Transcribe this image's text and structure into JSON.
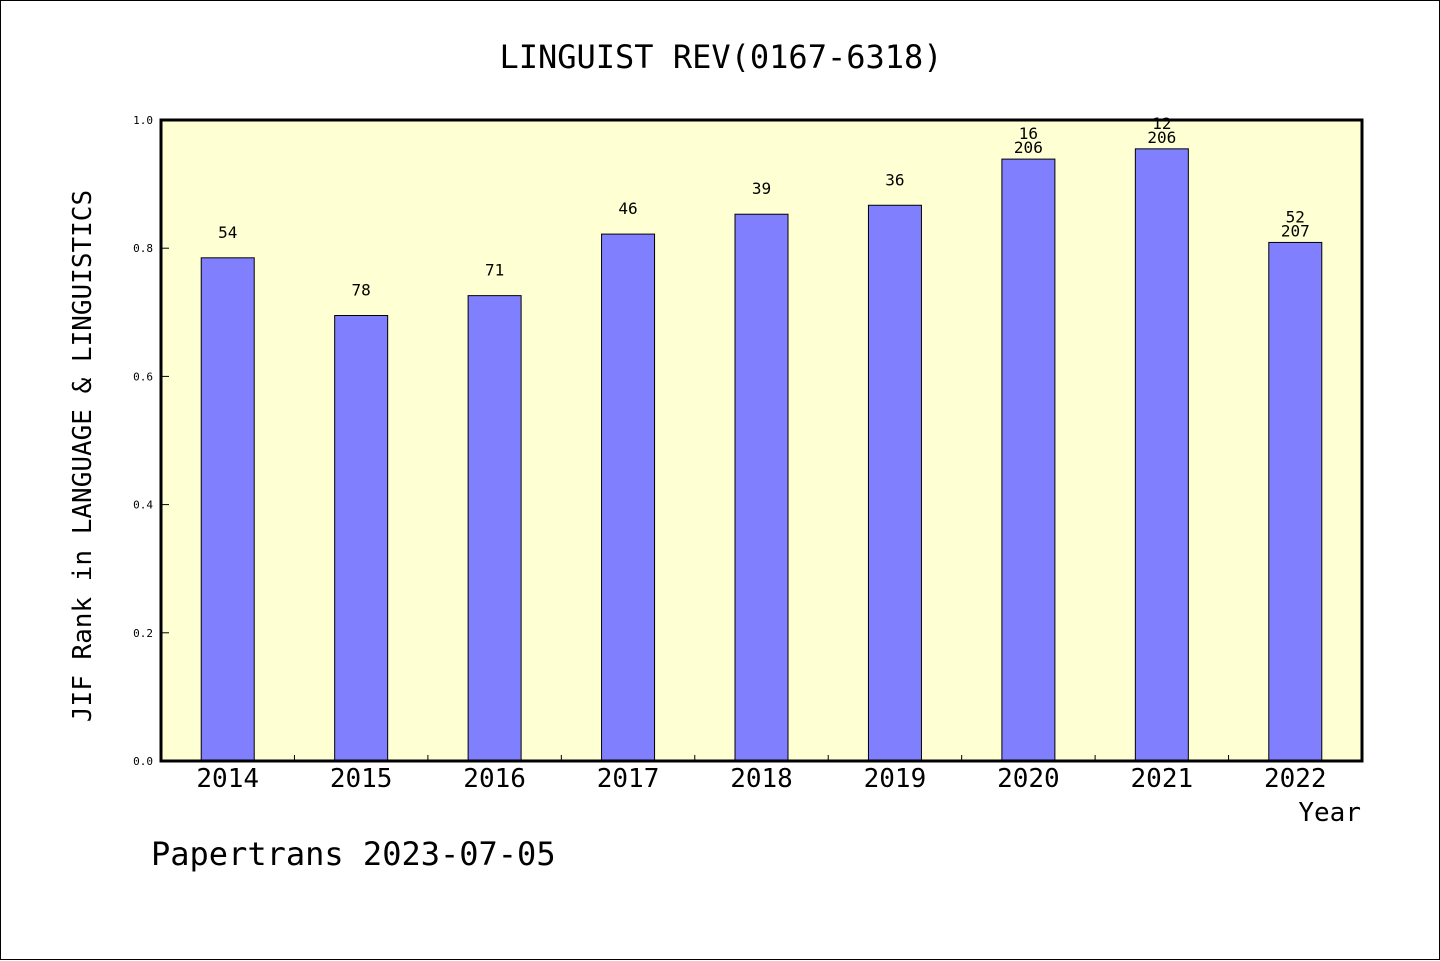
{
  "chart_data": {
    "type": "bar",
    "title": "LINGUIST REV(0167-6318)",
    "xlabel": "Year",
    "ylabel": "JIF Rank in LANGUAGE & LINGUISTICS",
    "ylim": [
      0,
      1.0
    ],
    "yticks": [
      "0.0",
      "0.2",
      "0.4",
      "0.6",
      "0.8",
      "1.0"
    ],
    "grid": false,
    "categories": [
      "2014",
      "2015",
      "2016",
      "2017",
      "2018",
      "2019",
      "2020",
      "2021",
      "2022"
    ],
    "values": [
      0.785,
      0.695,
      0.726,
      0.822,
      0.853,
      0.867,
      0.939,
      0.955,
      0.809
    ],
    "labels": [
      [
        "54"
      ],
      [
        "78"
      ],
      [
        "71"
      ],
      [
        "46"
      ],
      [
        "39"
      ],
      [
        "36"
      ],
      [
        "16",
        "206"
      ],
      [
        "12",
        "206"
      ],
      [
        "52",
        "207"
      ]
    ],
    "colors": {
      "bar": "#8080ff",
      "plot_background": "#ffffd4",
      "axis": "#000000"
    }
  },
  "footer": {
    "text": "Papertrans 2023-07-05"
  }
}
